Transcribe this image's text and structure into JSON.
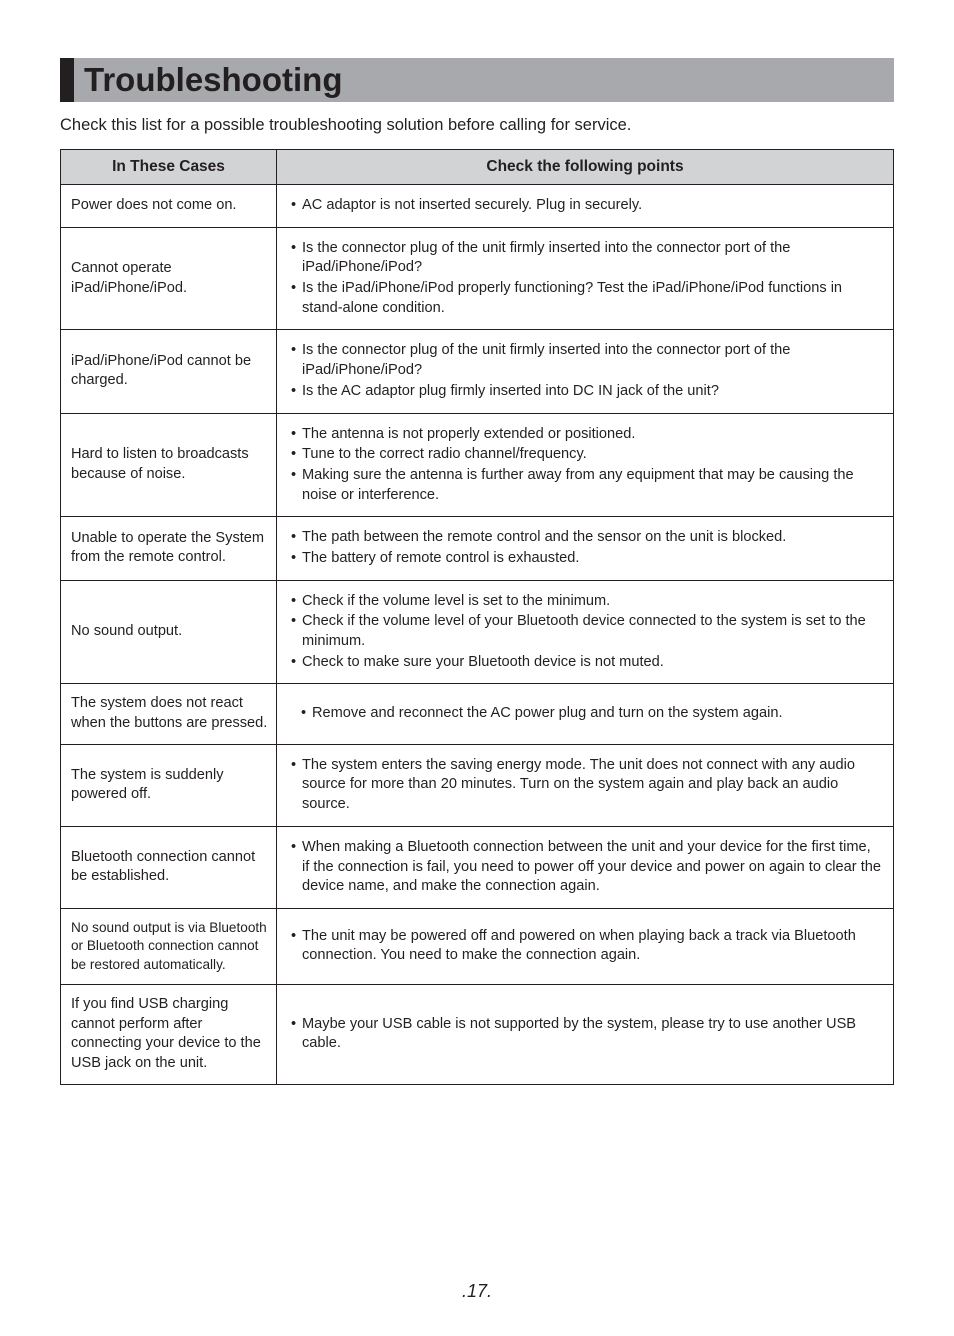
{
  "title": "Troubleshooting",
  "intro": "Check this list for a possible troubleshooting solution before calling for service.",
  "header_left": "In These Cases",
  "header_right": "Check the following points",
  "rows": [
    {
      "case": "Power does not come on.",
      "points": [
        "AC adaptor is not inserted securely. Plug in securely."
      ]
    },
    {
      "case": "Cannot operate iPad/iPhone/iPod.",
      "points": [
        "Is the connector plug of the unit firmly inserted into the connector port of the iPad/iPhone/iPod?",
        "Is the iPad/iPhone/iPod properly functioning? Test the iPad/iPhone/iPod functions in stand-alone condition."
      ]
    },
    {
      "case": "iPad/iPhone/iPod cannot be charged.",
      "points": [
        "Is the connector plug of the unit firmly inserted into the connector port of the iPad/iPhone/iPod?",
        "Is the AC adaptor plug firmly inserted into DC IN jack of the unit?"
      ]
    },
    {
      "case": "Hard to listen to broadcasts because of noise.",
      "points": [
        "The antenna is not properly extended or positioned.",
        "Tune to the correct radio channel/frequency.",
        "Making sure the antenna is further away from any equipment that may be causing the noise or interference."
      ]
    },
    {
      "case": "Unable to operate the System from the remote control.",
      "points": [
        "The path between the remote control and the sensor on the unit is blocked.",
        "The battery of remote control is exhausted."
      ]
    },
    {
      "case": "No sound output.",
      "points": [
        "Check if the volume level is set to the minimum.",
        "Check if the volume level of your Bluetooth device connected to the system is set to the minimum.",
        "Check to make sure your Bluetooth device is not muted."
      ]
    },
    {
      "case": "The system does not react when the buttons are pressed.",
      "points_indent": true,
      "points": [
        "Remove and reconnect the AC power plug and turn on the system again."
      ]
    },
    {
      "case": "The system is suddenly powered off.",
      "points": [
        "The system enters the saving energy mode. The unit does not connect with any audio source for more than 20 minutes. Turn on the system again and play back an audio source."
      ]
    },
    {
      "case": "Bluetooth connection cannot be established.",
      "points": [
        "When making a Bluetooth connection between the unit and your device for the first time, if the connection is fail, you need to power off your device and power on again to clear the device name, and make the connection again."
      ]
    },
    {
      "case": "No sound output is via Bluetooth or Bluetooth connection cannot be restored automatically.",
      "case_small": true,
      "points": [
        "The unit may be powered off and powered on when playing back a track via Bluetooth connection. You need to make the connection again."
      ]
    },
    {
      "case": "If you find USB charging cannot perform after connecting your device to the USB jack on the unit.",
      "points": [
        "Maybe your USB cable is not supported by the system, please try to use another USB cable."
      ]
    }
  ],
  "page_number": ".17."
}
